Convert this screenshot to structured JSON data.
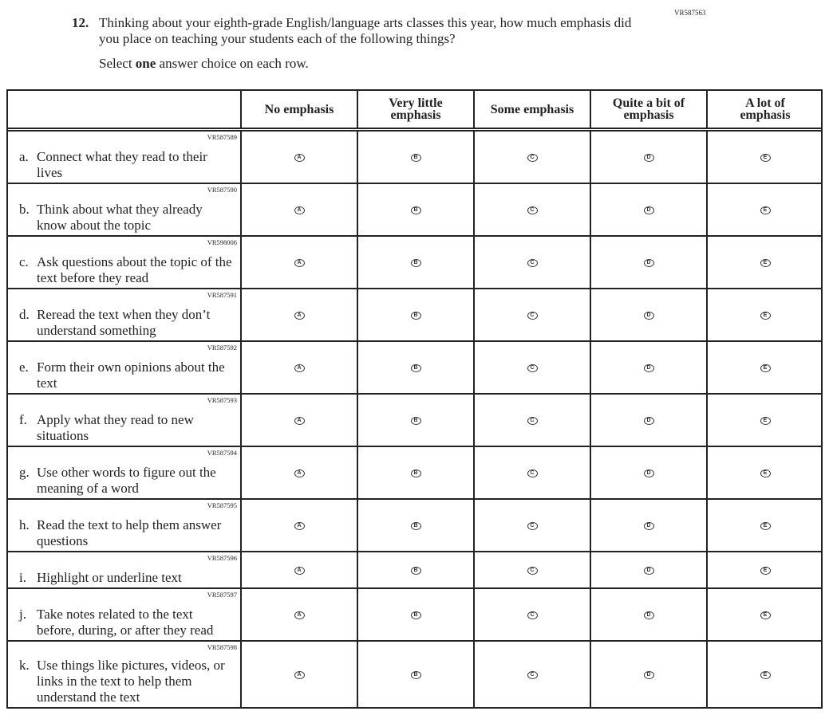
{
  "form_id": "VR587563",
  "question": {
    "number": "12.",
    "text": "Thinking about your eighth-grade English/language arts classes this year, how much emphasis did you place on teaching your students each of the following things?",
    "instruction_pre": "Select ",
    "instruction_bold": "one",
    "instruction_post": " answer choice on each row."
  },
  "columns": [
    "No emphasis",
    "Very little emphasis",
    "Some emphasis",
    "Quite a bit of emphasis",
    "A lot of emphasis"
  ],
  "bubbles": [
    "A",
    "B",
    "C",
    "D",
    "E"
  ],
  "items": [
    {
      "letter": "a.",
      "code": "VR587589",
      "text": "Connect what they read to their lives"
    },
    {
      "letter": "b.",
      "code": "VR587590",
      "text": "Think about what they already know about the topic"
    },
    {
      "letter": "c.",
      "code": "VR598006",
      "text": "Ask questions about the topic of the text before they read"
    },
    {
      "letter": "d.",
      "code": "VR587591",
      "text": "Reread the text when they don’t understand something"
    },
    {
      "letter": "e.",
      "code": "VR587592",
      "text": "Form their own opinions about the text"
    },
    {
      "letter": "f.",
      "code": "VR587593",
      "text": "Apply what they read to new situations"
    },
    {
      "letter": "g.",
      "code": "VR587594",
      "text": "Use other words to figure out the meaning of a word"
    },
    {
      "letter": "h.",
      "code": "VR587595",
      "text": "Read the text to help them answer questions"
    },
    {
      "letter": "i.",
      "code": "VR587596",
      "text": "Highlight or underline text"
    },
    {
      "letter": "j.",
      "code": "VR587597",
      "text": "Take notes related to the text before, during, or after they read"
    },
    {
      "letter": "k.",
      "code": "VR587598",
      "text": "Use things like pictures, videos, or links in the text to help them understand the text"
    }
  ]
}
